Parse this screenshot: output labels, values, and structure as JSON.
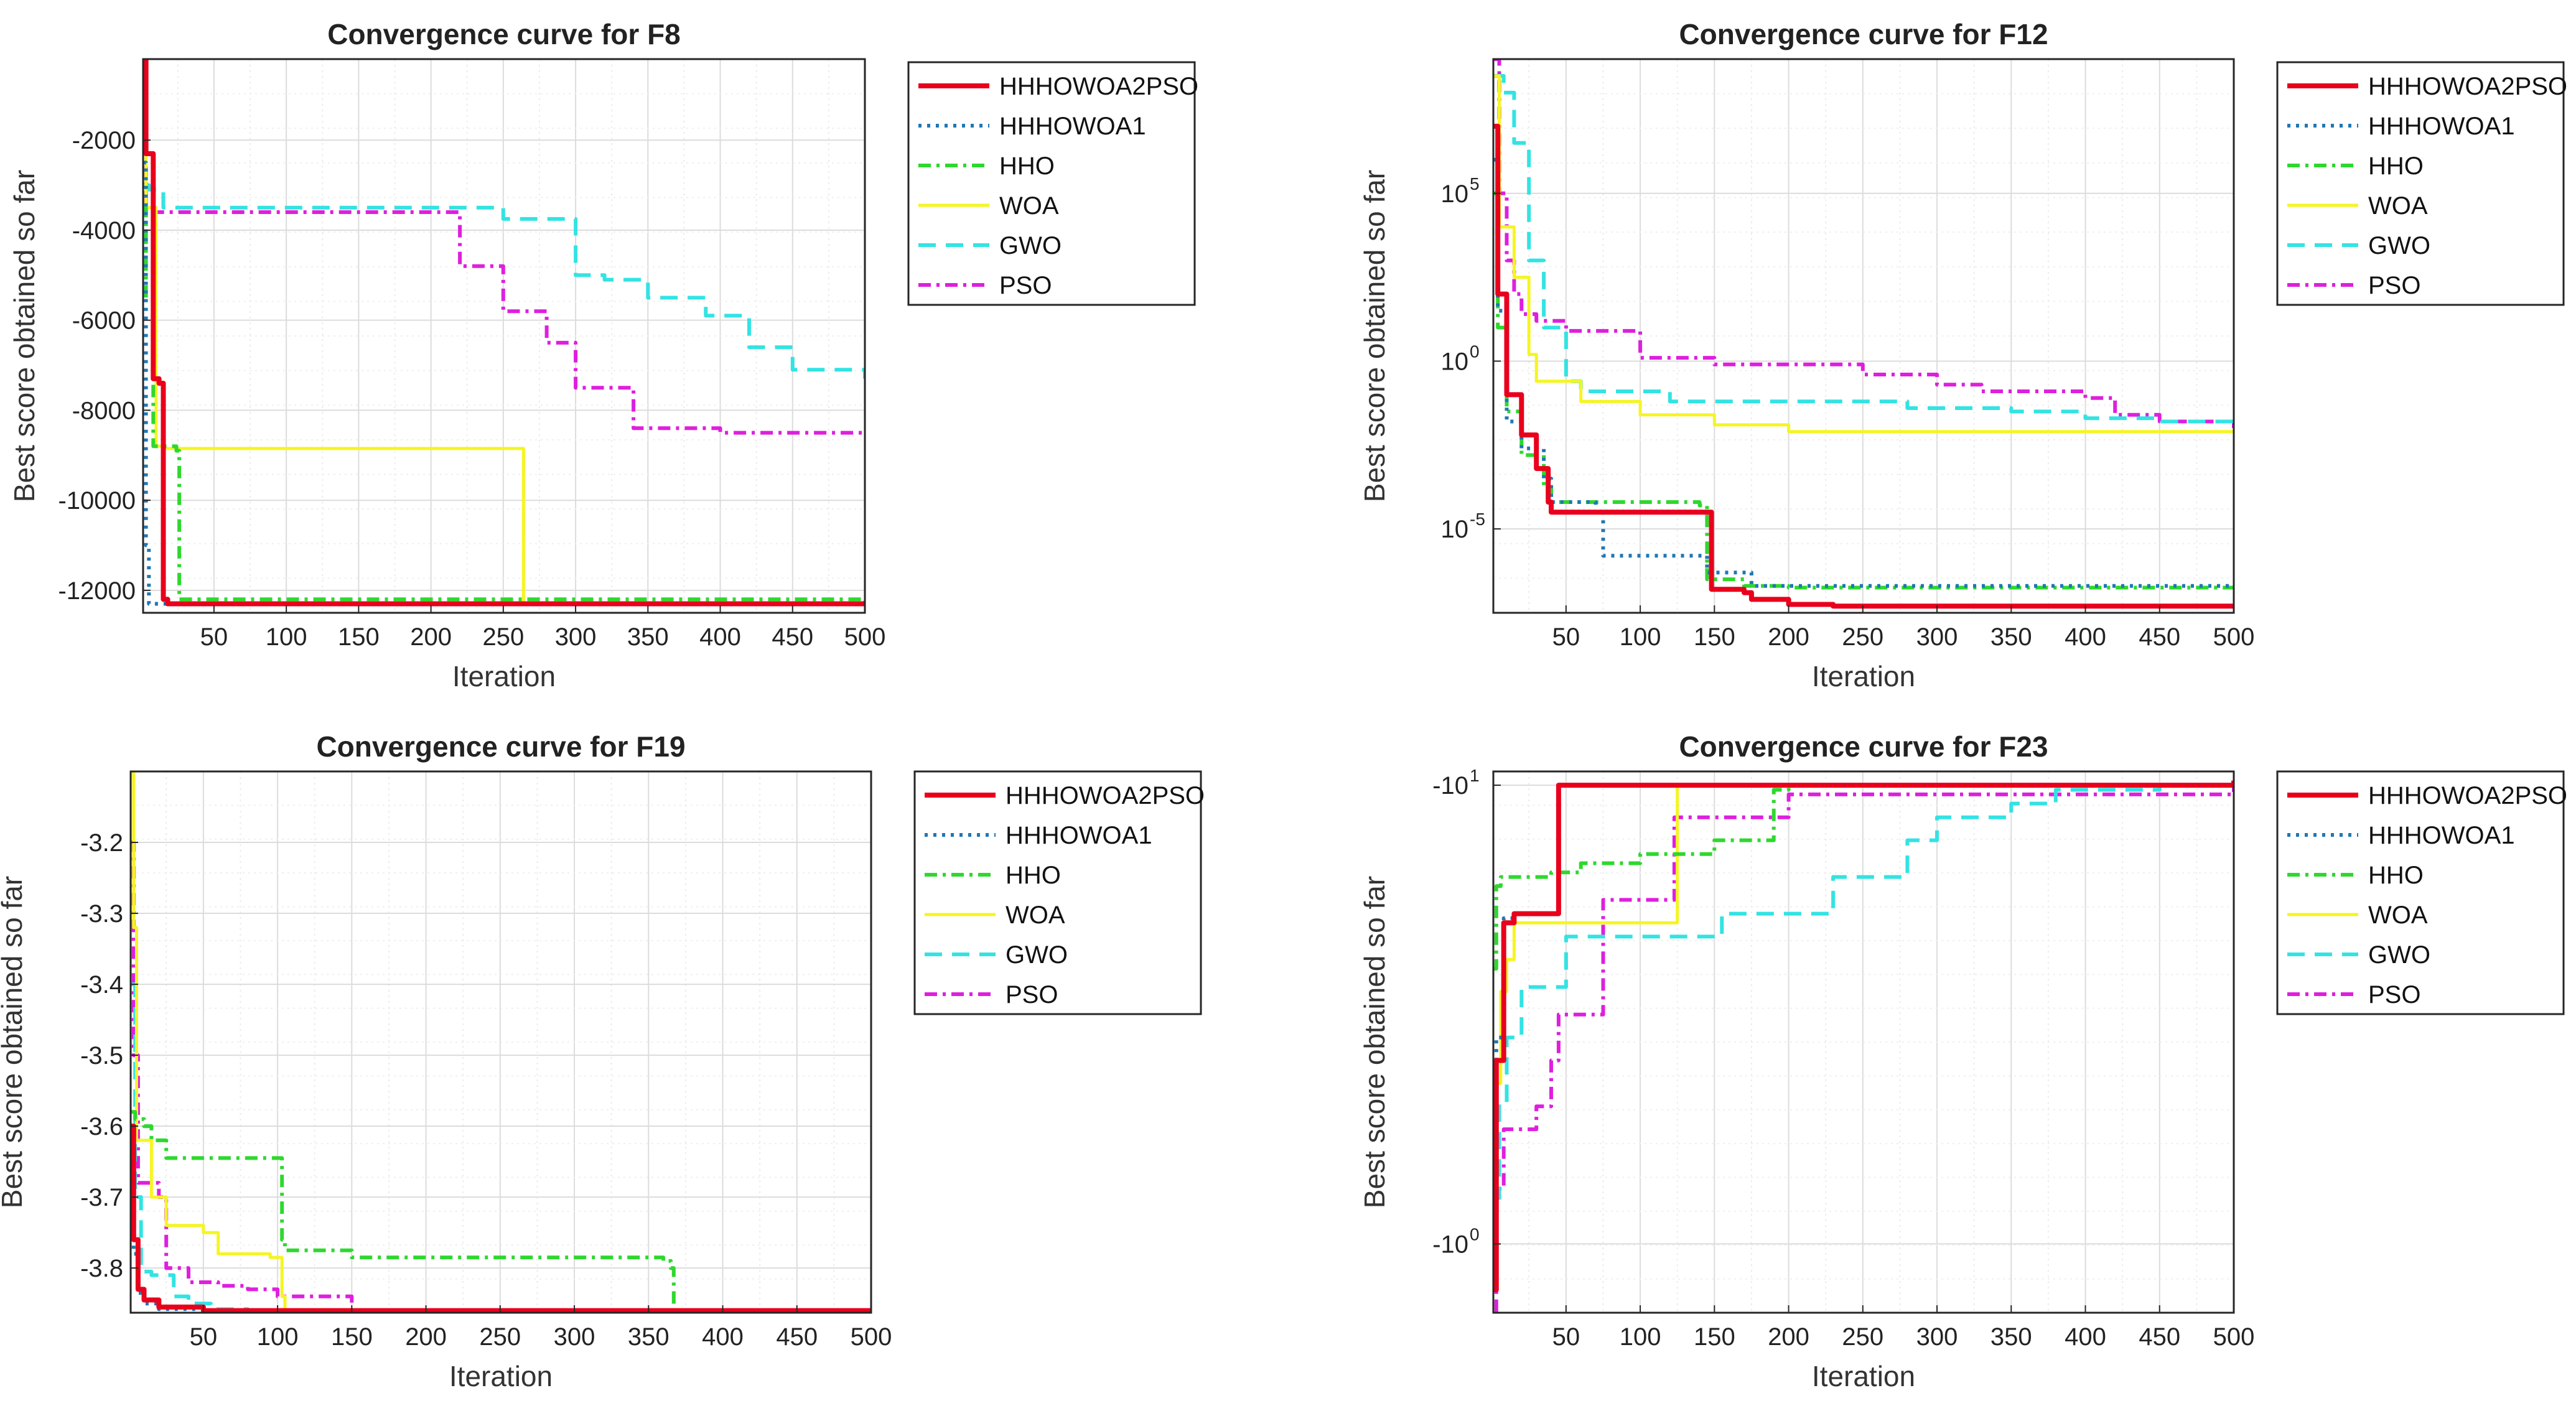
{
  "figure": {
    "colors": {
      "HHHOWOA2PSO": "#e8001c",
      "HHHOWOA1": "#1f77b4",
      "HHO": "#2ed82e",
      "WOA": "#f5f522",
      "GWO": "#33e3e3",
      "PSO": "#de1fde"
    }
  },
  "chart_data": [
    {
      "type": "line",
      "title": "Convergence curve for F8",
      "xlabel": "Iteration",
      "ylabel": "Best score obtained so far",
      "xlim": [
        1,
        500
      ],
      "ylim": [
        -12500,
        -200
      ],
      "yscale": "linear",
      "xticks": [
        50,
        100,
        150,
        200,
        250,
        300,
        350,
        400,
        450,
        500
      ],
      "yticks": [
        -2000,
        -4000,
        -6000,
        -8000,
        -10000,
        -12000
      ],
      "ytick_labels": [
        "-2000",
        "-4000",
        "-6000",
        "-8000",
        "-10000",
        "-12000"
      ],
      "grid": true,
      "legend": "outside-top-right",
      "series": [
        {
          "name": "HHHOWOA2PSO",
          "x": [
            1,
            3,
            8,
            12,
            15,
            18,
            500
          ],
          "y": [
            -200,
            -2300,
            -7300,
            -7400,
            -12200,
            -12300,
            -12300
          ]
        },
        {
          "name": "HHHOWOA1",
          "x": [
            1,
            3,
            5,
            500
          ],
          "y": [
            -2500,
            -11000,
            -12300,
            -12300
          ]
        },
        {
          "name": "HHO",
          "x": [
            1,
            3,
            8,
            24,
            26,
            500
          ],
          "y": [
            -3500,
            -5500,
            -8800,
            -8900,
            -12200,
            -12250
          ]
        },
        {
          "name": "WOA",
          "x": [
            1,
            3,
            10,
            15,
            262,
            264,
            500
          ],
          "y": [
            -1700,
            -3500,
            -8800,
            -8850,
            -8850,
            -12300,
            -12300
          ]
        },
        {
          "name": "GWO",
          "x": [
            1,
            5,
            15,
            200,
            250,
            285,
            300,
            320,
            350,
            390,
            420,
            450,
            500
          ],
          "y": [
            -3000,
            -3100,
            -3500,
            -3500,
            -3750,
            -3750,
            -5000,
            -5100,
            -5500,
            -5900,
            -6600,
            -7100,
            -7300
          ]
        },
        {
          "name": "PSO",
          "x": [
            1,
            3,
            200,
            220,
            250,
            280,
            300,
            340,
            400,
            500
          ],
          "y": [
            -2600,
            -3600,
            -3600,
            -4800,
            -5800,
            -6500,
            -7500,
            -8400,
            -8500,
            -8500
          ]
        }
      ]
    },
    {
      "type": "line",
      "title": "Convergence curve for F12",
      "xlabel": "Iteration",
      "ylabel": "Best score obtained so far",
      "xlim": [
        1,
        500
      ],
      "ylim": [
        -7.5,
        9
      ],
      "yscale": "log10",
      "xticks": [
        50,
        100,
        150,
        200,
        250,
        300,
        350,
        400,
        450,
        500
      ],
      "yticks": [
        5,
        0,
        -5
      ],
      "ytick_labels": [
        "10",
        "10",
        "10"
      ],
      "ytick_exponents": [
        "5",
        "0",
        "-5"
      ],
      "grid": true,
      "legend": "outside-top-right",
      "series": [
        {
          "name": "HHHOWOA2PSO",
          "x": [
            1,
            4,
            10,
            20,
            30,
            38,
            40,
            145,
            148,
            170,
            175,
            200,
            230,
            500
          ],
          "y": [
            7,
            2,
            -1,
            -2.2,
            -3.2,
            -4.2,
            -4.5,
            -4.5,
            -6.8,
            -6.9,
            -7.1,
            -7.25,
            -7.3,
            -7.3
          ]
        },
        {
          "name": "HHHOWOA1",
          "x": [
            1,
            4,
            10,
            20,
            35,
            40,
            70,
            75,
            140,
            145,
            170,
            175,
            500
          ],
          "y": [
            6,
            1.5,
            -1.8,
            -2.6,
            -3.5,
            -4.2,
            -4.5,
            -5.8,
            -5.8,
            -6.3,
            -6.3,
            -6.7,
            -6.7
          ]
        },
        {
          "name": "HHO",
          "x": [
            1,
            4,
            10,
            20,
            35,
            40,
            140,
            145,
            165,
            170,
            200,
            500
          ],
          "y": [
            5,
            1,
            -1.5,
            -2.8,
            -3.8,
            -4.2,
            -4.3,
            -6.5,
            -6.5,
            -6.7,
            -6.75,
            -6.8
          ]
        },
        {
          "name": "WOA",
          "x": [
            1,
            5,
            15,
            25,
            30,
            60,
            100,
            150,
            200,
            500
          ],
          "y": [
            8.5,
            4,
            2.5,
            0.2,
            -0.6,
            -1.2,
            -1.6,
            -1.9,
            -2.1,
            -2.1
          ]
        },
        {
          "name": "GWO",
          "x": [
            1,
            8,
            15,
            25,
            35,
            50,
            60,
            120,
            250,
            280,
            350,
            400,
            450,
            500
          ],
          "y": [
            8.5,
            8,
            6.5,
            3,
            1,
            -0.6,
            -0.9,
            -1.2,
            -1.2,
            -1.4,
            -1.5,
            -1.7,
            -1.8,
            -2
          ]
        },
        {
          "name": "PSO",
          "x": [
            1,
            5,
            10,
            15,
            20,
            30,
            50,
            100,
            150,
            250,
            300,
            330,
            400,
            420,
            450,
            500
          ],
          "y": [
            9,
            5,
            3,
            2,
            1.4,
            1.2,
            0.9,
            0.1,
            -0.1,
            -0.4,
            -0.7,
            -0.9,
            -1.1,
            -1.6,
            -1.8,
            -2
          ]
        }
      ]
    },
    {
      "type": "line",
      "title": "Convergence curve for F19",
      "xlabel": "Iteration",
      "ylabel": "Best score obtained so far",
      "xlim": [
        1,
        500
      ],
      "ylim": [
        -3.863,
        -3.1
      ],
      "yscale": "linear",
      "xticks": [
        50,
        100,
        150,
        200,
        250,
        300,
        350,
        400,
        450,
        500
      ],
      "yticks": [
        -3.2,
        -3.3,
        -3.4,
        -3.5,
        -3.6,
        -3.7,
        -3.8
      ],
      "ytick_labels": [
        "-3.2",
        "-3.3",
        "-3.4",
        "-3.5",
        "-3.6",
        "-3.7",
        "-3.8"
      ],
      "grid": true,
      "legend": "outside-top-right",
      "series": [
        {
          "name": "HHHOWOA2PSO",
          "x": [
            1,
            3,
            6,
            10,
            20,
            50,
            500
          ],
          "y": [
            -3.6,
            -3.76,
            -3.83,
            -3.845,
            -3.855,
            -3.86,
            -3.862
          ]
        },
        {
          "name": "HHHOWOA1",
          "x": [
            1,
            3,
            6,
            10,
            20,
            50,
            500
          ],
          "y": [
            -3.65,
            -3.78,
            -3.835,
            -3.85,
            -3.858,
            -3.861,
            -3.862
          ]
        },
        {
          "name": "HHO",
          "x": [
            1,
            4,
            10,
            15,
            25,
            90,
            100,
            103,
            105,
            120,
            150,
            360,
            365,
            367,
            500
          ],
          "y": [
            -3.58,
            -3.59,
            -3.6,
            -3.62,
            -3.645,
            -3.645,
            -3.645,
            -3.76,
            -3.775,
            -3.775,
            -3.785,
            -3.79,
            -3.8,
            -3.862,
            -3.862
          ]
        },
        {
          "name": "WOA",
          "x": [
            1,
            3,
            5,
            15,
            25,
            50,
            60,
            95,
            100,
            103,
            105,
            500
          ],
          "y": [
            -3.1,
            -3.32,
            -3.62,
            -3.7,
            -3.74,
            -3.75,
            -3.78,
            -3.785,
            -3.785,
            -3.84,
            -3.862,
            -3.862
          ]
        },
        {
          "name": "GWO",
          "x": [
            1,
            4,
            8,
            15,
            30,
            40,
            55,
            80,
            500
          ],
          "y": [
            -3.4,
            -3.7,
            -3.805,
            -3.81,
            -3.84,
            -3.85,
            -3.858,
            -3.861,
            -3.862
          ]
        },
        {
          "name": "PSO",
          "x": [
            1,
            3,
            6,
            8,
            20,
            25,
            40,
            60,
            80,
            100,
            150,
            500
          ],
          "y": [
            -3.2,
            -3.5,
            -3.68,
            -3.68,
            -3.7,
            -3.8,
            -3.82,
            -3.825,
            -3.83,
            -3.84,
            -3.86,
            -3.862
          ]
        }
      ]
    },
    {
      "type": "line",
      "title": "Convergence curve for F23",
      "xlabel": "Iteration",
      "ylabel": "Best score obtained so far",
      "xlim": [
        1,
        500
      ],
      "ylim": [
        -0.15,
        1.03
      ],
      "yscale": "log10 (negative values)",
      "xticks": [
        50,
        100,
        150,
        200,
        250,
        300,
        350,
        400,
        450,
        500
      ],
      "yticks": [
        0,
        1
      ],
      "ytick_labels": [
        "-10",
        "-10"
      ],
      "ytick_exponents": [
        "0",
        "1"
      ],
      "grid": true,
      "legend": "outside-top-right",
      "series": [
        {
          "name": "HHHOWOA2PSO",
          "x": [
            1,
            3,
            8,
            15,
            40,
            45,
            500
          ],
          "y": [
            -0.1,
            0.4,
            0.7,
            0.72,
            0.72,
            1.0,
            1.01
          ]
        },
        {
          "name": "HHHOWOA1",
          "x": [
            1,
            3,
            8,
            15,
            40,
            45,
            500
          ],
          "y": [
            -0.05,
            0.45,
            0.71,
            0.72,
            0.72,
            1.0,
            1.005
          ]
        },
        {
          "name": "HHO",
          "x": [
            1,
            3,
            6,
            40,
            60,
            100,
            150,
            185,
            190,
            200,
            500
          ],
          "y": [
            0.6,
            0.78,
            0.8,
            0.81,
            0.83,
            0.85,
            0.88,
            0.88,
            0.99,
            1.0,
            1.01
          ]
        },
        {
          "name": "WOA",
          "x": [
            1,
            3,
            6,
            10,
            15,
            120,
            125,
            500
          ],
          "y": [
            0.15,
            0.35,
            0.55,
            0.62,
            0.7,
            0.7,
            1.0,
            1.01
          ]
        },
        {
          "name": "GWO",
          "x": [
            1,
            5,
            10,
            20,
            50,
            140,
            155,
            180,
            230,
            260,
            280,
            300,
            350,
            380,
            450,
            500
          ],
          "y": [
            0.1,
            0.3,
            0.45,
            0.56,
            0.67,
            0.67,
            0.72,
            0.72,
            0.8,
            0.8,
            0.88,
            0.93,
            0.96,
            0.99,
            1.0,
            1.0
          ]
        },
        {
          "name": "PSO",
          "x": [
            1,
            3,
            8,
            30,
            40,
            45,
            70,
            75,
            120,
            123,
            200,
            500
          ],
          "y": [
            -0.2,
            0.12,
            0.25,
            0.3,
            0.4,
            0.5,
            0.5,
            0.75,
            0.75,
            0.93,
            0.98,
            1.01
          ]
        }
      ]
    }
  ]
}
